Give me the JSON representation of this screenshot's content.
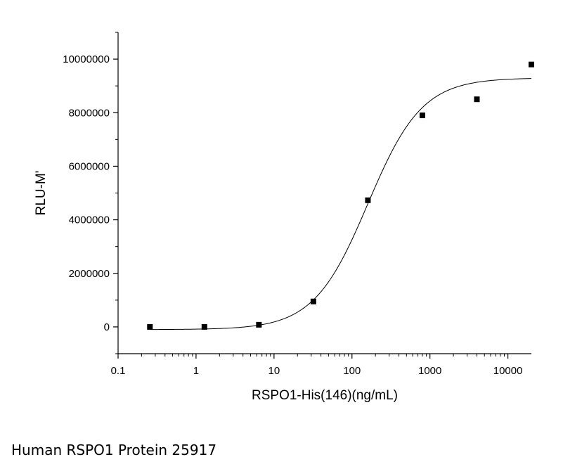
{
  "caption": "Human RSPO1 Protein 25917",
  "chart_data": {
    "type": "scatter",
    "xlabel": "RSPO1-His(146)(ng/mL)",
    "ylabel": "RLU-M'",
    "x_scale": "log",
    "xlim": [
      0.1,
      20000
    ],
    "ylim": [
      -1000000,
      11000000
    ],
    "x_ticks": [
      {
        "value": 0.1,
        "label": "0.1"
      },
      {
        "value": 1,
        "label": "1"
      },
      {
        "value": 10,
        "label": "10"
      },
      {
        "value": 100,
        "label": "100"
      },
      {
        "value": 1000,
        "label": "1000"
      },
      {
        "value": 10000,
        "label": "10000"
      }
    ],
    "y_ticks": [
      {
        "value": 0,
        "label": "0"
      },
      {
        "value": 2000000,
        "label": "2000000"
      },
      {
        "value": 4000000,
        "label": "4000000"
      },
      {
        "value": 6000000,
        "label": "6000000"
      },
      {
        "value": 8000000,
        "label": "8000000"
      },
      {
        "value": 10000000,
        "label": "10000000"
      }
    ],
    "points": [
      {
        "x": 0.256,
        "y": 0
      },
      {
        "x": 1.28,
        "y": 0
      },
      {
        "x": 6.4,
        "y": 80000
      },
      {
        "x": 32,
        "y": 950000
      },
      {
        "x": 160,
        "y": 4730000
      },
      {
        "x": 800,
        "y": 7900000
      },
      {
        "x": 4000,
        "y": 8500000
      },
      {
        "x": 20000,
        "y": 9800000
      }
    ],
    "fit_curve": {
      "model": "4PL",
      "bottom": -100000,
      "top": 9300000,
      "ec50": 160,
      "hill": 1.25
    },
    "grid": false,
    "legend": "none",
    "colors": {
      "marker": "#000000",
      "curve": "#000000",
      "axis": "#000000"
    }
  }
}
